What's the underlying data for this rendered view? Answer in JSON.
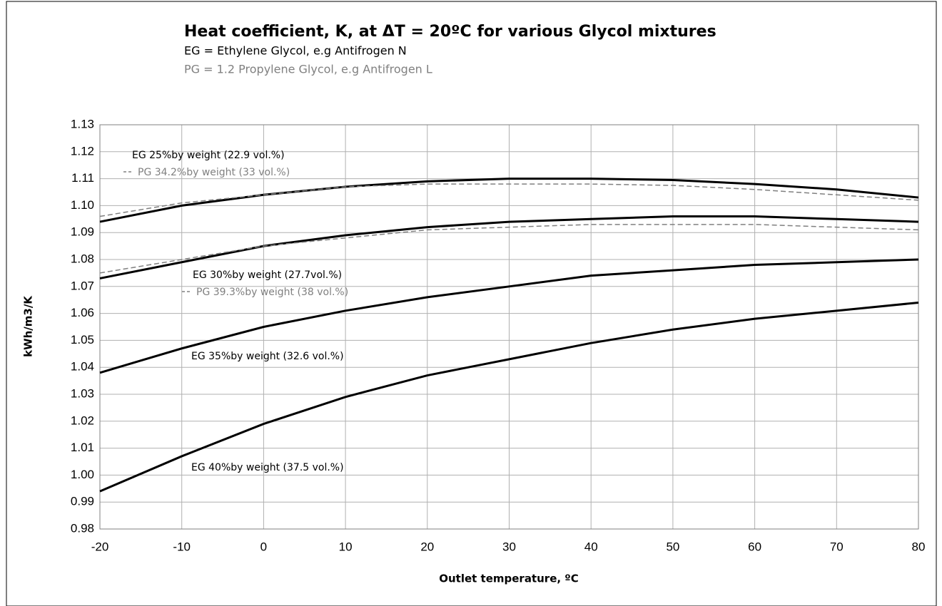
{
  "chart_data": {
    "type": "line",
    "title": "Heat coefficient, K, at ΔT = 20ºC for various Glycol mixtures",
    "subtitle": [
      "EG = Ethylene Glycol, e.g Antifrogen N",
      "PG = 1.2 Propylene Glycol, e.g Antifrogen L"
    ],
    "xlabel": "Outlet temperature, ºC",
    "ylabel": "kWh/m3/K",
    "x": [
      -20,
      -10,
      0,
      10,
      20,
      30,
      40,
      50,
      60,
      70,
      80
    ],
    "series": [
      {
        "name": "EG 25%by weight (22.9 vol.%)",
        "color": "#000000",
        "line_style": "solid",
        "values": [
          1.094,
          1.1,
          1.104,
          1.107,
          1.109,
          1.11,
          1.11,
          1.1095,
          1.108,
          1.106,
          1.103
        ]
      },
      {
        "name": "PG 34.2%by weight (33 vol.%)",
        "color": "#808080",
        "line_style": "dashed",
        "values": [
          1.096,
          1.101,
          1.104,
          1.107,
          1.108,
          1.108,
          1.108,
          1.1075,
          1.106,
          1.104,
          1.102
        ]
      },
      {
        "name": "EG 30%by weight (27.7vol.%)",
        "color": "#000000",
        "line_style": "solid",
        "values": [
          1.073,
          1.079,
          1.085,
          1.089,
          1.092,
          1.094,
          1.095,
          1.096,
          1.096,
          1.095,
          1.094
        ]
      },
      {
        "name": "PG 39.3%by weight (38 vol.%)",
        "color": "#808080",
        "line_style": "dashed",
        "values": [
          1.075,
          1.08,
          1.085,
          1.088,
          1.091,
          1.092,
          1.093,
          1.093,
          1.093,
          1.092,
          1.091
        ]
      },
      {
        "name": "EG 35%by weight (32.6 vol.%)",
        "color": "#000000",
        "line_style": "solid",
        "values": [
          1.038,
          1.047,
          1.055,
          1.061,
          1.066,
          1.07,
          1.074,
          1.076,
          1.078,
          1.079,
          1.08
        ]
      },
      {
        "name": "EG 40%by weight (37.5 vol.%)",
        "color": "#000000",
        "line_style": "solid",
        "values": [
          0.994,
          1.007,
          1.019,
          1.029,
          1.037,
          1.043,
          1.049,
          1.054,
          1.058,
          1.061,
          1.064
        ]
      }
    ],
    "xlim": [
      -20,
      80
    ],
    "xticks": [
      -20,
      -10,
      0,
      10,
      20,
      30,
      40,
      50,
      60,
      70,
      80
    ],
    "ylim": [
      0.98,
      1.13
    ],
    "yticks": [
      0.98,
      0.99,
      {
        "value": 1.0,
        "label": "1.00"
      },
      1.01,
      1.02,
      1.03,
      1.04,
      1.05,
      1.06,
      1.07,
      1.08,
      1.09,
      {
        "value": 1.1,
        "label": "1.10"
      },
      1.11,
      1.12,
      1.13
    ],
    "grid": true
  }
}
